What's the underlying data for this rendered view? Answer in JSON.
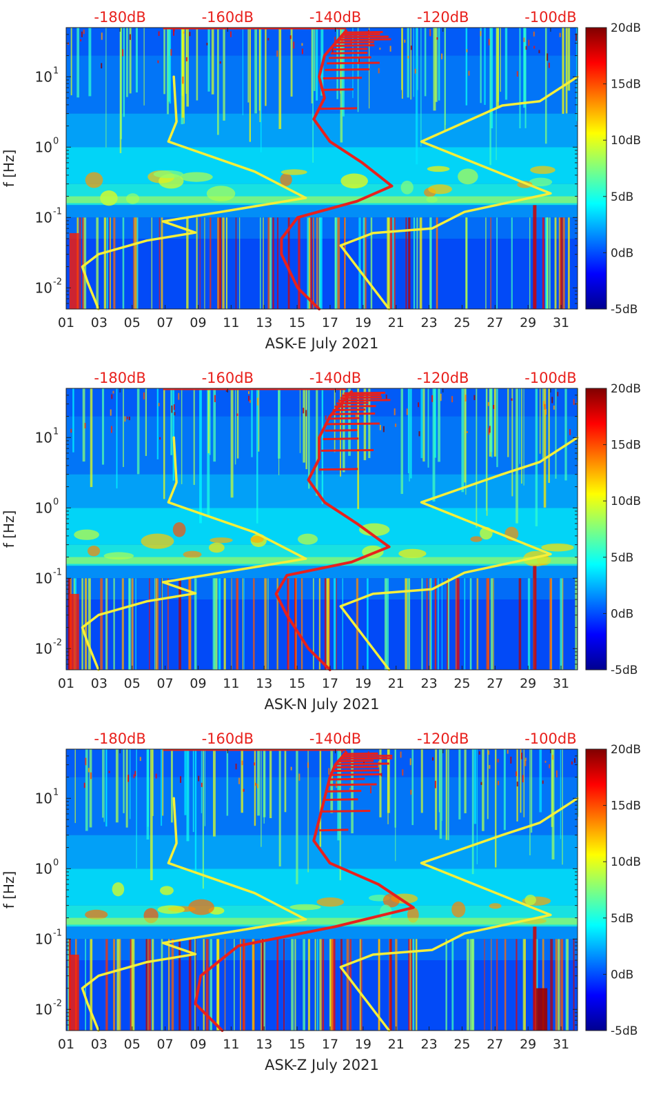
{
  "chart_data": [
    {
      "type": "heatmap",
      "xlabel": "ASK-E July 2021",
      "ylabel": "f [Hz]",
      "x_ticks": [
        "01",
        "03",
        "05",
        "07",
        "09",
        "11",
        "13",
        "15",
        "17",
        "19",
        "21",
        "23",
        "25",
        "27",
        "29",
        "31"
      ],
      "x_range_days": [
        1,
        32
      ],
      "y_scale": "log",
      "ylim_hz": [
        0.005,
        50
      ],
      "y_ticks": [
        {
          "exp": "-2",
          "value": 0.01
        },
        {
          "exp": "-1",
          "value": 0.1
        },
        {
          "exp": "0",
          "value": 1
        },
        {
          "exp": "1",
          "value": 10
        }
      ],
      "top_axis_ticks": [
        "-180dB",
        "-160dB",
        "-140dB",
        "-120dB",
        "-100dB"
      ],
      "top_axis_range_db": [
        -190,
        -95
      ],
      "colorbar": {
        "ticks": [
          "20dB",
          "15dB",
          "10dB",
          "5dB",
          "0dB",
          "-5dB"
        ],
        "range_db": [
          -5,
          20
        ]
      },
      "overlays": [
        {
          "color": "yellow",
          "description_units": "dB (top axis)",
          "points": [
            [
              -170.0,
              10
            ],
            [
              -169.5,
              2.3
            ],
            [
              -171.0,
              1.2
            ],
            [
              -155,
              0.45
            ],
            [
              -145.5,
              0.19
            ],
            [
              -172,
              0.088
            ],
            [
              -166,
              0.061
            ],
            [
              -175,
              0.047
            ],
            [
              -184,
              0.03
            ],
            [
              -187,
              0.02
            ],
            [
              -186,
              0.012
            ],
            [
              -184,
              0.005
            ]
          ]
        },
        {
          "color": "yellow",
          "description_units": "dB (top axis)",
          "points": [
            [
              -95.0,
              10
            ],
            [
              -102,
              4.5
            ],
            [
              -109,
              3.9
            ],
            [
              -124,
              1.2
            ],
            [
              -100,
              0.22
            ],
            [
              -116,
              0.12
            ],
            [
              -122,
              0.07
            ],
            [
              -133,
              0.06
            ],
            [
              -139,
              0.04
            ],
            [
              -130,
              0.005
            ]
          ]
        },
        {
          "color": "red",
          "description_units": "dB (top axis)",
          "points": [
            [
              -138.0,
              45
            ],
            [
              -140,
              30
            ],
            [
              -142,
              20
            ],
            [
              -143,
              10
            ],
            [
              -142,
              5
            ],
            [
              -144,
              2.5
            ],
            [
              -141,
              1.2
            ],
            [
              -135,
              0.6
            ],
            [
              -129.5,
              0.28
            ],
            [
              -136,
              0.17
            ],
            [
              -147,
              0.1
            ],
            [
              -150,
              0.05
            ],
            [
              -150,
              0.03
            ],
            [
              -147,
              0.01
            ],
            [
              -143,
              0.005
            ]
          ]
        }
      ]
    },
    {
      "type": "heatmap",
      "xlabel": "ASK-N July 2021",
      "ylabel": "f [Hz]",
      "x_ticks": [
        "01",
        "03",
        "05",
        "07",
        "09",
        "11",
        "13",
        "15",
        "17",
        "19",
        "21",
        "23",
        "25",
        "27",
        "29",
        "31"
      ],
      "x_range_days": [
        1,
        32
      ],
      "y_scale": "log",
      "ylim_hz": [
        0.005,
        50
      ],
      "y_ticks": [
        {
          "exp": "-2",
          "value": 0.01
        },
        {
          "exp": "-1",
          "value": 0.1
        },
        {
          "exp": "0",
          "value": 1
        },
        {
          "exp": "1",
          "value": 10
        }
      ],
      "top_axis_ticks": [
        "-180dB",
        "-160dB",
        "-140dB",
        "-120dB",
        "-100dB"
      ],
      "top_axis_range_db": [
        -190,
        -95
      ],
      "colorbar": {
        "ticks": [
          "20dB",
          "15dB",
          "10dB",
          "5dB",
          "0dB",
          "-5dB"
        ],
        "range_db": [
          -5,
          20
        ]
      },
      "overlays": [
        {
          "color": "yellow",
          "description_units": "dB (top axis)",
          "points": [
            [
              -170.0,
              10
            ],
            [
              -169.5,
              2.3
            ],
            [
              -171.0,
              1.2
            ],
            [
              -155,
              0.45
            ],
            [
              -145.5,
              0.19
            ],
            [
              -172,
              0.088
            ],
            [
              -166,
              0.061
            ],
            [
              -175,
              0.047
            ],
            [
              -184,
              0.03
            ],
            [
              -187,
              0.02
            ],
            [
              -186,
              0.012
            ],
            [
              -184,
              0.005
            ]
          ]
        },
        {
          "color": "yellow",
          "description_units": "dB (top axis)",
          "points": [
            [
              -95.0,
              10
            ],
            [
              -102,
              4.5
            ],
            [
              -109,
              3.0
            ],
            [
              -124,
              1.2
            ],
            [
              -100,
              0.22
            ],
            [
              -116,
              0.12
            ],
            [
              -122,
              0.07
            ],
            [
              -133,
              0.06
            ],
            [
              -139,
              0.04
            ],
            [
              -130,
              0.005
            ]
          ]
        },
        {
          "color": "red",
          "description_units": "dB (top axis)",
          "points": [
            [
              -137.0,
              45
            ],
            [
              -139,
              30
            ],
            [
              -141,
              20
            ],
            [
              -143,
              10
            ],
            [
              -143,
              5
            ],
            [
              -145,
              2.5
            ],
            [
              -142,
              1.2
            ],
            [
              -136,
              0.6
            ],
            [
              -130,
              0.28
            ],
            [
              -137,
              0.17
            ],
            [
              -149,
              0.11
            ],
            [
              -151,
              0.06
            ],
            [
              -149,
              0.03
            ],
            [
              -145,
              0.01
            ],
            [
              -141,
              0.005
            ]
          ]
        }
      ]
    },
    {
      "type": "heatmap",
      "xlabel": "ASK-Z July 2021",
      "ylabel": "f [Hz]",
      "x_ticks": [
        "01",
        "03",
        "05",
        "07",
        "09",
        "11",
        "13",
        "15",
        "17",
        "19",
        "21",
        "23",
        "25",
        "27",
        "29",
        "31"
      ],
      "x_range_days": [
        1,
        32
      ],
      "y_scale": "log",
      "ylim_hz": [
        0.005,
        50
      ],
      "y_ticks": [
        {
          "exp": "-2",
          "value": 0.01
        },
        {
          "exp": "-1",
          "value": 0.1
        },
        {
          "exp": "0",
          "value": 1
        },
        {
          "exp": "1",
          "value": 10
        }
      ],
      "top_axis_ticks": [
        "-180dB",
        "-160dB",
        "-140dB",
        "-120dB",
        "-100dB"
      ],
      "top_axis_range_db": [
        -190,
        -95
      ],
      "colorbar": {
        "ticks": [
          "20dB",
          "15dB",
          "10dB",
          "5dB",
          "0dB",
          "-5dB"
        ],
        "range_db": [
          -5,
          20
        ]
      },
      "overlays": [
        {
          "color": "yellow",
          "description_units": "dB (top axis)",
          "points": [
            [
              -170.0,
              10
            ],
            [
              -169.5,
              2.3
            ],
            [
              -171.0,
              1.2
            ],
            [
              -155,
              0.45
            ],
            [
              -145.5,
              0.19
            ],
            [
              -172,
              0.088
            ],
            [
              -166,
              0.061
            ],
            [
              -175,
              0.047
            ],
            [
              -184,
              0.03
            ],
            [
              -187,
              0.02
            ],
            [
              -186,
              0.012
            ],
            [
              -184,
              0.005
            ]
          ]
        },
        {
          "color": "yellow",
          "description_units": "dB (top axis)",
          "points": [
            [
              -95.0,
              10
            ],
            [
              -102,
              4.5
            ],
            [
              -109,
              3.0
            ],
            [
              -124,
              1.2
            ],
            [
              -100,
              0.22
            ],
            [
              -116,
              0.12
            ],
            [
              -122,
              0.07
            ],
            [
              -133,
              0.06
            ],
            [
              -139,
              0.04
            ],
            [
              -130,
              0.005
            ]
          ]
        },
        {
          "color": "red",
          "description_units": "dB (top axis)",
          "points": [
            [
              -138.0,
              45
            ],
            [
              -140,
              30
            ],
            [
              -141,
              20
            ],
            [
              -142,
              10
            ],
            [
              -143,
              5
            ],
            [
              -144,
              2.5
            ],
            [
              -141,
              1.2
            ],
            [
              -132,
              0.6
            ],
            [
              -125.5,
              0.28
            ],
            [
              -140,
              0.15
            ],
            [
              -158,
              0.08
            ],
            [
              -165,
              0.03
            ],
            [
              -166,
              0.012
            ],
            [
              -161,
              0.005
            ]
          ]
        }
      ]
    }
  ]
}
